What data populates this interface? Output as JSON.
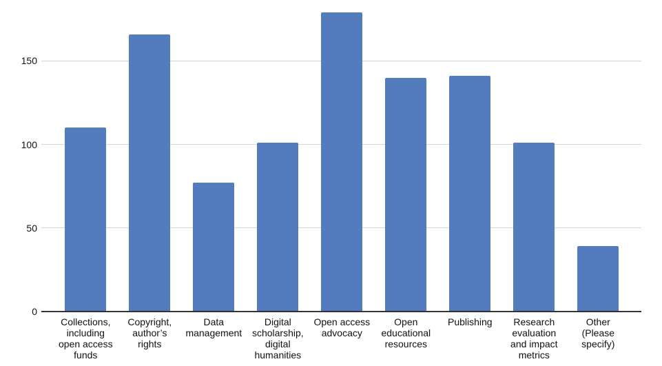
{
  "chart_data": {
    "type": "bar",
    "title": "",
    "xlabel": "",
    "ylabel": "",
    "categories": [
      "Collections, including open access funds",
      "Copyright, author’s rights",
      "Data management",
      "Digital scholarship, digital humanities",
      "Open access advocacy",
      "Open educational resources",
      "Publishing",
      "Research evaluation and impact metrics",
      "Other (Please specify)"
    ],
    "categories_wrapped": [
      "Collections,\nincluding\nopen access\nfunds",
      "Copyright,\nauthor’s\nrights",
      "Data\nmanagement",
      "Digital\nscholarship,\ndigital\nhumanities",
      "Open access\nadvocacy",
      "Open\neducational\nresources",
      "Publishing",
      "Research\nevaluation\nand impact\nmetrics",
      "Other\n(Please\nspecify)"
    ],
    "values": [
      110,
      166,
      77,
      101,
      179,
      140,
      141,
      101,
      39
    ],
    "yticks": [
      0,
      50,
      100,
      150
    ],
    "ylim": [
      0,
      185
    ],
    "grid": true,
    "legend": false,
    "colors": {
      "bar": "#527CBE",
      "gridline": "#d4d4d4",
      "axis": "#333333",
      "text": "#111111",
      "background": "#ffffff"
    }
  }
}
